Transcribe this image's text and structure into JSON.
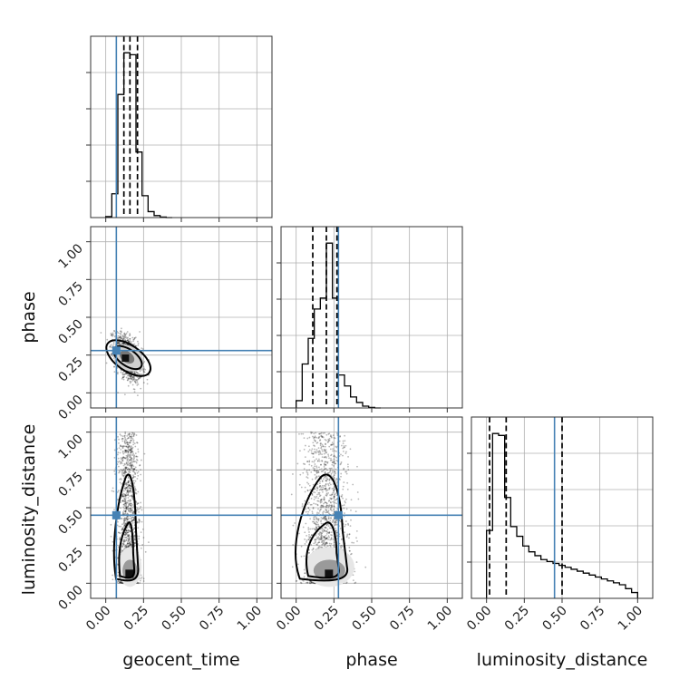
{
  "chart_data": {
    "type": "corner",
    "parameters": [
      "geocent_time",
      "phase",
      "luminosity_distance"
    ],
    "tick_labels": [
      "0.00",
      "0.25",
      "0.50",
      "0.75",
      "1.00"
    ],
    "axis_range": [
      -0.1,
      1.1
    ],
    "grid": true,
    "truth_color": "#4682b4",
    "truths": {
      "geocent_time": 0.07,
      "phase": 0.28,
      "luminosity_distance": 0.45
    },
    "quantiles": {
      "geocent_time": [
        0.12,
        0.16,
        0.21
      ],
      "phase": [
        0.11,
        0.2,
        0.27
      ],
      "luminosity_distance": [
        0.02,
        0.13,
        0.5
      ]
    },
    "histograms": {
      "geocent_time": {
        "bin_edges": [
          0.0,
          0.04,
          0.08,
          0.12,
          0.16,
          0.2,
          0.24,
          0.28,
          0.32,
          0.36,
          0.4,
          0.44
        ],
        "counts": [
          0.5,
          12,
          62,
          83,
          82,
          33,
          11,
          3,
          1,
          0.3,
          0
        ]
      },
      "phase": {
        "bin_edges": [
          0.0,
          0.04,
          0.08,
          0.12,
          0.16,
          0.2,
          0.24,
          0.28,
          0.32,
          0.36,
          0.4,
          0.44,
          0.48,
          0.52,
          0.56
        ],
        "counts": [
          4,
          24,
          38,
          54,
          60,
          90,
          60,
          18,
          12,
          6,
          3,
          1,
          0.3,
          0
        ]
      },
      "luminosity_distance": {
        "bin_edges": [
          0.0,
          0.04,
          0.08,
          0.12,
          0.16,
          0.2,
          0.24,
          0.28,
          0.32,
          0.36,
          0.4,
          0.44,
          0.48,
          0.52,
          0.56,
          0.6,
          0.64,
          0.68,
          0.72,
          0.76,
          0.8,
          0.84,
          0.88,
          0.92,
          0.96,
          1.0
        ],
        "counts": [
          35,
          85,
          84,
          52,
          37,
          32,
          27,
          24,
          22,
          20,
          19,
          18,
          17,
          16,
          15,
          14,
          13,
          12,
          11,
          10,
          9,
          8,
          7,
          5,
          3
        ]
      }
    },
    "joint": {
      "geocent_time_vs_phase": {
        "mean": [
          0.15,
          0.23
        ],
        "sd": [
          0.045,
          0.075
        ],
        "rho": -0.45,
        "n_points": 1400,
        "peak": [
          0.13,
          0.23
        ]
      },
      "geocent_time_vs_luminosity_distance": {
        "mean": [
          0.15,
          0.22
        ],
        "sd": [
          0.035,
          0.3
        ],
        "rho": 0.0,
        "n_points": 1600,
        "peak": [
          0.16,
          0.06
        ]
      },
      "phase_vs_luminosity_distance": {
        "mean": [
          0.2,
          0.22
        ],
        "sd": [
          0.075,
          0.3
        ],
        "rho": 0.0,
        "n_points": 1600,
        "peak": [
          0.22,
          0.06
        ]
      }
    }
  }
}
